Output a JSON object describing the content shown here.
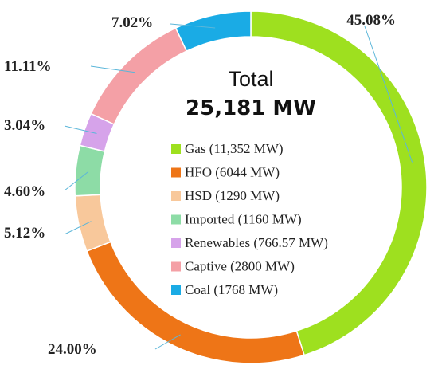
{
  "chart_data": {
    "type": "pie",
    "donut": true,
    "center": {
      "title": "Total",
      "total": "25,181 MW"
    },
    "categories": [
      "Gas",
      "HFO",
      "HSD",
      "Imported",
      "Renewables",
      "Captive",
      "Coal"
    ],
    "series": [
      {
        "values": [
          45.08,
          24.0,
          5.12,
          4.6,
          3.04,
          11.11,
          7.02
        ],
        "value_labels": [
          "45.08%",
          "24.00%",
          "5.12%",
          "4.60%",
          "3.04%",
          "11.11%",
          "7.02%"
        ]
      }
    ],
    "legend": [
      {
        "label": "Gas (11,352 MW)",
        "color": "#9EE01F"
      },
      {
        "label": "HFO (6044 MW)",
        "color": "#EE7517"
      },
      {
        "label": "HSD (1290 MW)",
        "color": "#F8C89B"
      },
      {
        "label": "Imported (1160 MW)",
        "color": "#8DDCA6"
      },
      {
        "label": "Renewables (766.57 MW)",
        "color": "#D6A3EA"
      },
      {
        "label": "Captive (2800 MW)",
        "color": "#F4A0A6"
      },
      {
        "label": "Coal (1768 MW)",
        "color": "#1AABE5"
      }
    ],
    "legend_position": "center",
    "start_direction": "top",
    "direction": "clockwise"
  }
}
